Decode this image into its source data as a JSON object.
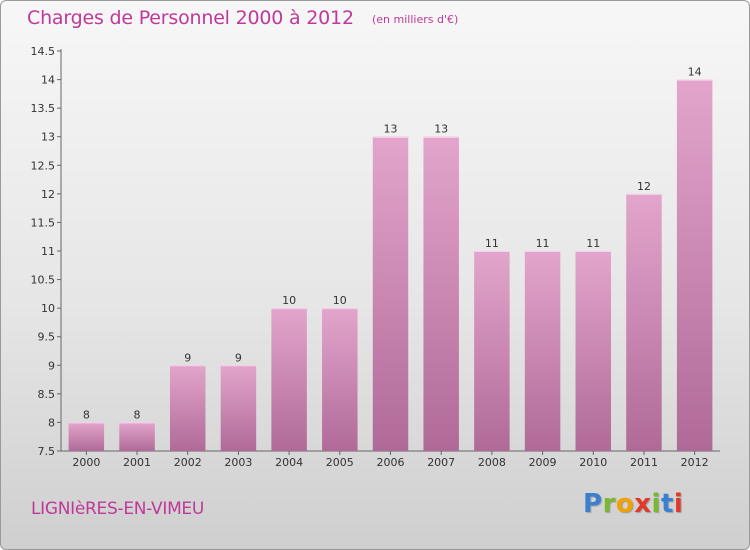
{
  "title": "Charges de Personnel 2000 à 2012",
  "subtitle": "(en milliers d'€)",
  "commune": "LIGNIèRES-EN-VIMEU",
  "logo": {
    "letters": [
      "P",
      "r",
      "o",
      "x",
      "i",
      "t",
      "i"
    ],
    "colors": [
      "#3a7fd0",
      "#7cb82f",
      "#f0a000",
      "#e03a2a",
      "#7cb82f",
      "#3a7fd0",
      "#e03a2a"
    ]
  },
  "colors": {
    "bar_top": "#e3a5cc",
    "bar_bottom": "#b06a98",
    "accent": "#c0399a"
  },
  "chart_data": {
    "type": "bar",
    "categories": [
      "2000",
      "2001",
      "2002",
      "2003",
      "2004",
      "2005",
      "2006",
      "2007",
      "2008",
      "2009",
      "2010",
      "2011",
      "2012"
    ],
    "values": [
      8,
      8,
      9,
      9,
      10,
      10,
      13,
      13,
      11,
      11,
      11,
      12,
      14
    ],
    "value_labels": [
      "8",
      "8",
      "9",
      "9",
      "10",
      "10",
      "13",
      "13",
      "11",
      "11",
      "11",
      "12",
      "14"
    ],
    "yticks": [
      "7.5",
      "8",
      "8.5",
      "9",
      "9.5",
      "10",
      "10.5",
      "11",
      "11.5",
      "12",
      "12.5",
      "13",
      "13.5",
      "14",
      "14.5"
    ],
    "ylim": [
      7.5,
      14.5
    ],
    "grid": false
  }
}
